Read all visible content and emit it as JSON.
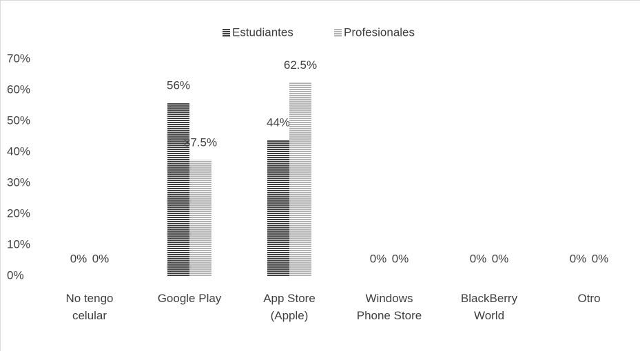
{
  "chart_data": {
    "type": "bar",
    "categories": [
      "No tengo celular",
      "Google Play",
      "App Store (Apple)",
      "Windows Phone Store",
      "BlackBerry World",
      "Otro"
    ],
    "series": [
      {
        "name": "Estudiantes",
        "color": "#404040",
        "values": [
          0,
          56,
          44,
          0,
          0,
          0
        ],
        "value_labels": [
          "0%",
          "56%",
          "44%",
          "0%",
          "0%",
          "0%"
        ]
      },
      {
        "name": "Profesionales",
        "color": "#b3b3b3",
        "values": [
          0,
          37.5,
          62.5,
          0,
          0,
          0
        ],
        "value_labels": [
          "0%",
          "37.5%",
          "62.5%",
          "0%",
          "0%",
          "0%"
        ]
      }
    ],
    "ylim": [
      0,
      70
    ],
    "yticks": [
      {
        "value": 0,
        "label": "0%"
      },
      {
        "value": 10,
        "label": "10%"
      },
      {
        "value": 20,
        "label": "20%"
      },
      {
        "value": 30,
        "label": "30%"
      },
      {
        "value": 40,
        "label": "40%"
      },
      {
        "value": 50,
        "label": "50%"
      },
      {
        "value": 60,
        "label": "60%"
      },
      {
        "value": 70,
        "label": "70%"
      }
    ],
    "legend": "top",
    "grid": false
  }
}
